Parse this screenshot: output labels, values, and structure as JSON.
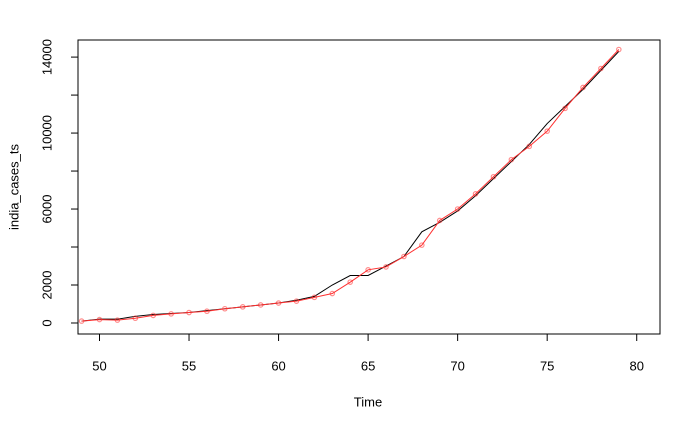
{
  "chart_data": {
    "type": "line",
    "x_label": "Time",
    "y_label": "india_cases_ts",
    "x": [
      49,
      50,
      51,
      52,
      53,
      54,
      55,
      56,
      57,
      58,
      59,
      60,
      61,
      62,
      63,
      64,
      65,
      66,
      67,
      68,
      69,
      70,
      71,
      72,
      73,
      74,
      75,
      76,
      77,
      78,
      79
    ],
    "series": [
      {
        "color": "#000000",
        "markers": false,
        "values": [
          100,
          200,
          200,
          350,
          450,
          500,
          550,
          650,
          750,
          850,
          950,
          1050,
          1200,
          1400,
          2000,
          2500,
          2500,
          3000,
          3500,
          4800,
          5300,
          5900,
          6700,
          7600,
          8500,
          9400,
          10500,
          11400,
          12300,
          13300,
          14300
        ]
      },
      {
        "color": "#ff3030",
        "markers": true,
        "values": [
          100,
          180,
          150,
          250,
          400,
          480,
          550,
          620,
          750,
          850,
          950,
          1050,
          1150,
          1350,
          1550,
          2150,
          2800,
          2950,
          3500,
          4100,
          5400,
          6000,
          6800,
          7700,
          8600,
          9300,
          10100,
          11300,
          12400,
          13400,
          14400
        ]
      }
    ],
    "xlim": [
      48.8,
      81.3
    ],
    "xticks": [
      50,
      55,
      60,
      65,
      70,
      75,
      80
    ],
    "ylim": [
      -580,
      14900
    ],
    "yticks": [
      0,
      2000,
      {
        "value": 4000,
        "label": null
      },
      6000,
      {
        "value": 8000,
        "label": null
      },
      10000,
      {
        "value": 12000,
        "label": null
      },
      14000
    ]
  }
}
